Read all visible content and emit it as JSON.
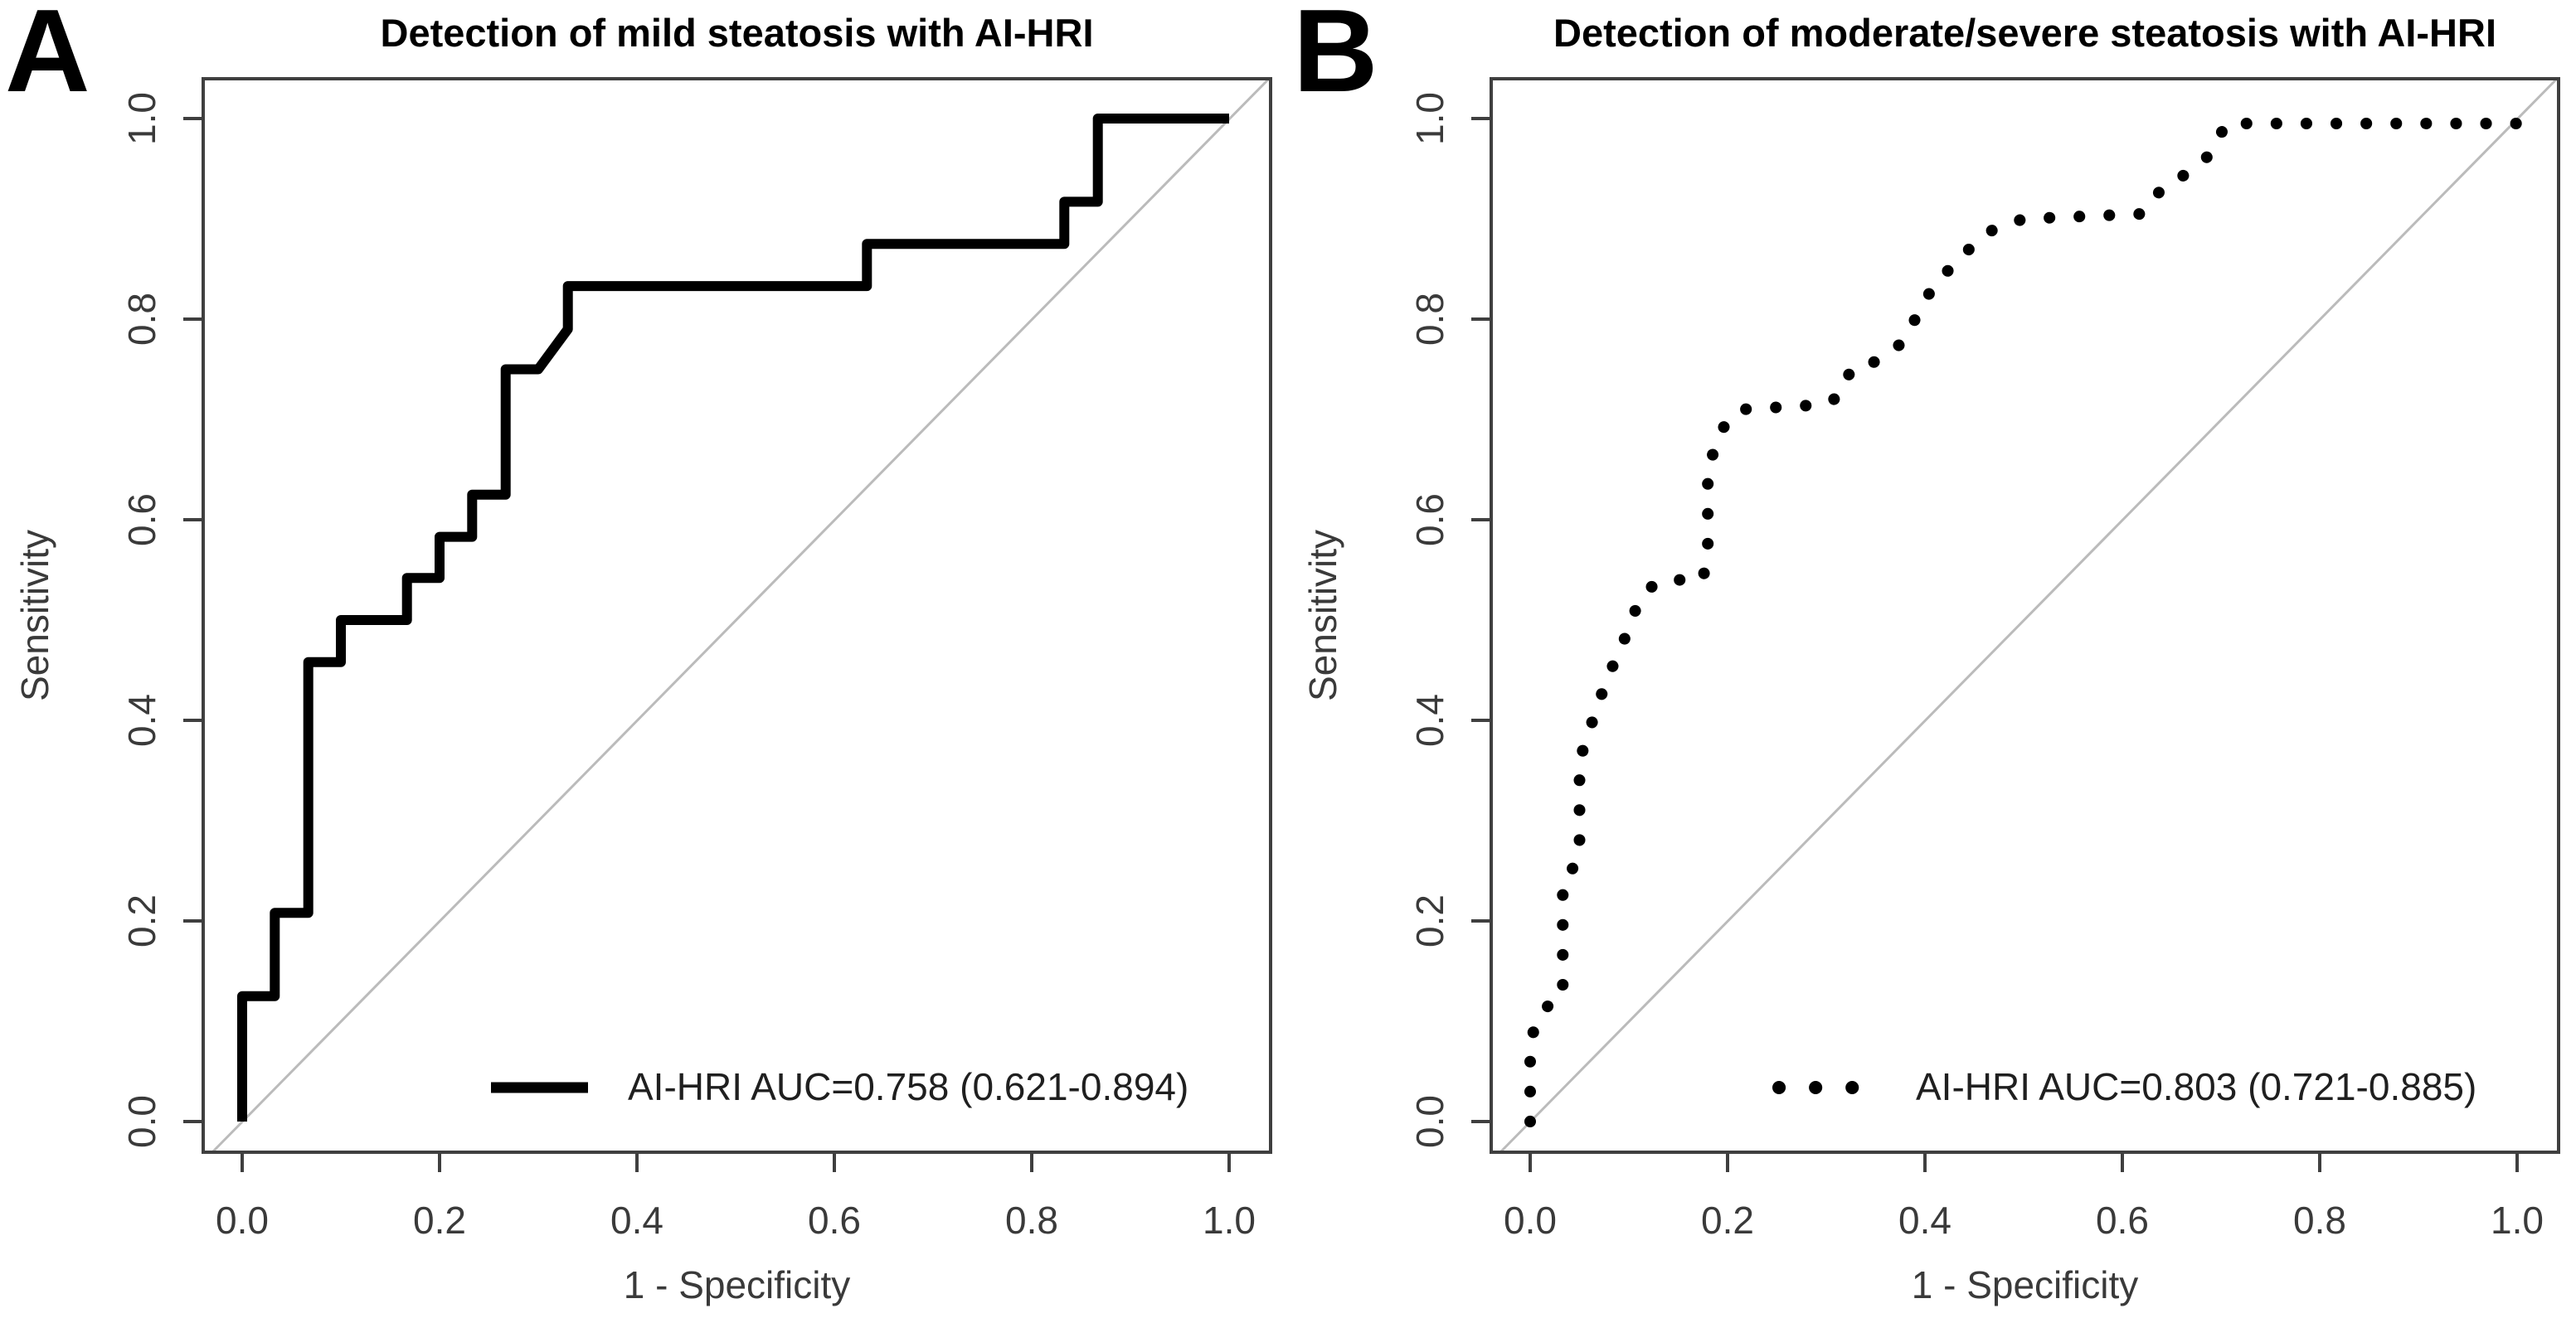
{
  "figure": {
    "background": "#ffffff",
    "colors": {
      "curve": "#000000",
      "diagonal": "#bbbbbb",
      "axis": "#3f3f3f",
      "tick_label": "#3a3a3a",
      "title": "#000000",
      "legend_text": "#1f1f1f"
    }
  },
  "chart_data": [
    {
      "type": "line",
      "panel_letter": "A",
      "title": "Detection of mild steatosis with AI-HRI",
      "xlabel": "1 - Specificity",
      "ylabel": "Sensitivity",
      "x_tick_labels": [
        "0.0",
        "0.2",
        "0.4",
        "0.6",
        "0.8",
        "1.0"
      ],
      "y_tick_labels": [
        "0.0",
        "0.2",
        "0.4",
        "0.6",
        "0.8",
        "1.0"
      ],
      "xlim": [
        0,
        1
      ],
      "ylim": [
        0,
        1
      ],
      "grid": false,
      "reference_line": "diagonal-chance-line",
      "legend_position": "bottom-right",
      "series_name": "AI-HRI",
      "auc": 0.758,
      "auc_ci_low": 0.621,
      "auc_ci_high": 0.894,
      "legend_label": "AI-HRI AUC=0.758 (0.621-0.894)",
      "line_style": "solid",
      "roc_points": [
        [
          0.0,
          0.0
        ],
        [
          0.0,
          0.125
        ],
        [
          0.033,
          0.125
        ],
        [
          0.033,
          0.208
        ],
        [
          0.067,
          0.208
        ],
        [
          0.067,
          0.458
        ],
        [
          0.1,
          0.458
        ],
        [
          0.1,
          0.5
        ],
        [
          0.167,
          0.5
        ],
        [
          0.167,
          0.542
        ],
        [
          0.2,
          0.542
        ],
        [
          0.2,
          0.583
        ],
        [
          0.233,
          0.583
        ],
        [
          0.233,
          0.625
        ],
        [
          0.267,
          0.625
        ],
        [
          0.267,
          0.75
        ],
        [
          0.3,
          0.75
        ],
        [
          0.33,
          0.79
        ],
        [
          0.33,
          0.833
        ],
        [
          0.633,
          0.833
        ],
        [
          0.633,
          0.875
        ],
        [
          0.833,
          0.875
        ],
        [
          0.833,
          0.917
        ],
        [
          0.867,
          0.917
        ],
        [
          0.867,
          1.0
        ],
        [
          1.0,
          1.0
        ]
      ]
    },
    {
      "type": "line",
      "panel_letter": "B",
      "title": "Detection of moderate/severe steatosis with AI-HRI",
      "xlabel": "1 - Specificity",
      "ylabel": "Sensitivity",
      "x_tick_labels": [
        "0.0",
        "0.2",
        "0.4",
        "0.6",
        "0.8",
        "1.0"
      ],
      "y_tick_labels": [
        "0.0",
        "0.2",
        "0.4",
        "0.6",
        "0.8",
        "1.0"
      ],
      "xlim": [
        0,
        1
      ],
      "ylim": [
        0,
        1
      ],
      "grid": false,
      "reference_line": "diagonal-chance-line",
      "legend_position": "bottom-right",
      "series_name": "AI-HRI",
      "auc": 0.803,
      "auc_ci_low": 0.721,
      "auc_ci_high": 0.885,
      "legend_label": "AI-HRI AUC=0.803 (0.721-0.885)",
      "line_style": "dotted",
      "roc_points": [
        [
          0.0,
          0.0
        ],
        [
          0.0,
          0.08
        ],
        [
          0.007,
          0.1
        ],
        [
          0.02,
          0.118
        ],
        [
          0.033,
          0.125
        ],
        [
          0.033,
          0.24
        ],
        [
          0.045,
          0.255
        ],
        [
          0.05,
          0.27
        ],
        [
          0.05,
          0.36
        ],
        [
          0.06,
          0.39
        ],
        [
          0.07,
          0.42
        ],
        [
          0.08,
          0.445
        ],
        [
          0.09,
          0.47
        ],
        [
          0.1,
          0.49
        ],
        [
          0.11,
          0.52
        ],
        [
          0.125,
          0.535
        ],
        [
          0.135,
          0.54
        ],
        [
          0.175,
          0.54
        ],
        [
          0.18,
          0.57
        ],
        [
          0.18,
          0.65
        ],
        [
          0.19,
          0.68
        ],
        [
          0.2,
          0.7
        ],
        [
          0.215,
          0.71
        ],
        [
          0.3,
          0.715
        ],
        [
          0.315,
          0.725
        ],
        [
          0.325,
          0.75
        ],
        [
          0.345,
          0.755
        ],
        [
          0.36,
          0.765
        ],
        [
          0.375,
          0.775
        ],
        [
          0.385,
          0.79
        ],
        [
          0.395,
          0.81
        ],
        [
          0.41,
          0.835
        ],
        [
          0.435,
          0.86
        ],
        [
          0.45,
          0.875
        ],
        [
          0.47,
          0.89
        ],
        [
          0.5,
          0.9
        ],
        [
          0.62,
          0.905
        ],
        [
          0.64,
          0.93
        ],
        [
          0.665,
          0.945
        ],
        [
          0.69,
          0.965
        ],
        [
          0.705,
          0.995
        ],
        [
          1.0,
          0.995
        ],
        [
          1.0,
          1.0
        ]
      ]
    }
  ]
}
